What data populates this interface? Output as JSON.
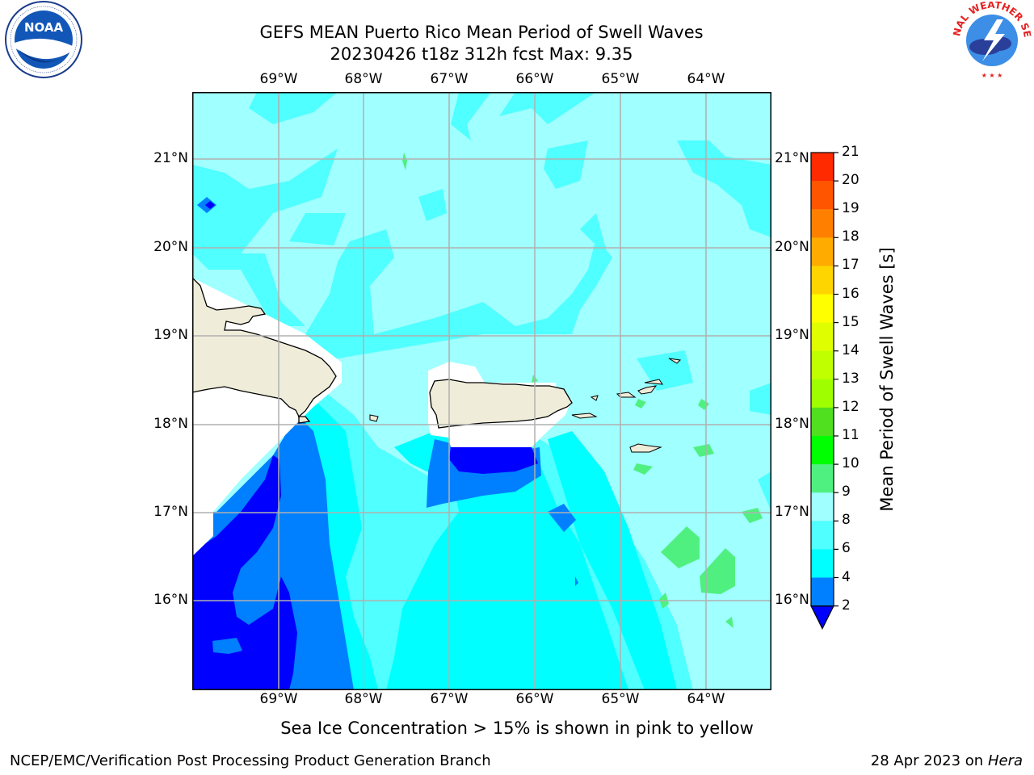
{
  "title": {
    "line1": "GEFS MEAN Puerto Rico Mean Period of Swell Waves",
    "line2": "20230426 t18z 312h fcst   Max: 9.35"
  },
  "map": {
    "lon_labels": [
      "69°W",
      "68°W",
      "67°W",
      "66°W",
      "65°W",
      "64°W"
    ],
    "lat_labels": [
      "21°N",
      "20°N",
      "19°N",
      "18°N",
      "17°N",
      "16°N"
    ],
    "land_color": "#efedd9",
    "background_color": "#a0ffff"
  },
  "colorbar": {
    "title": "Mean Period of Swell Waves [s]",
    "ticks": [
      "21",
      "20",
      "19",
      "18",
      "17",
      "16",
      "15",
      "14",
      "13",
      "12",
      "11",
      "10",
      "9",
      "8",
      "6",
      "4",
      "2"
    ],
    "colors": [
      "#ff0000",
      "#ff2a00",
      "#ff5500",
      "#ff8000",
      "#ffab00",
      "#ffd500",
      "#ffff00",
      "#dfff00",
      "#bfff00",
      "#9fff00",
      "#50e020",
      "#00ff00",
      "#50f080",
      "#a0ffff",
      "#50ffff",
      "#00ffff",
      "#0080ff",
      "#0000ff"
    ]
  },
  "note": "Sea Ice Concentration > 15% is shown in pink to yellow",
  "footer": {
    "left": "NCEP/EMC/Verification Post Processing Product Generation Branch",
    "date": "28 Apr 2023 on ",
    "host": "Hera"
  },
  "logos": {
    "noaa_text": "NOAA",
    "nws_text": "NATIONAL WEATHER SERVICE"
  }
}
